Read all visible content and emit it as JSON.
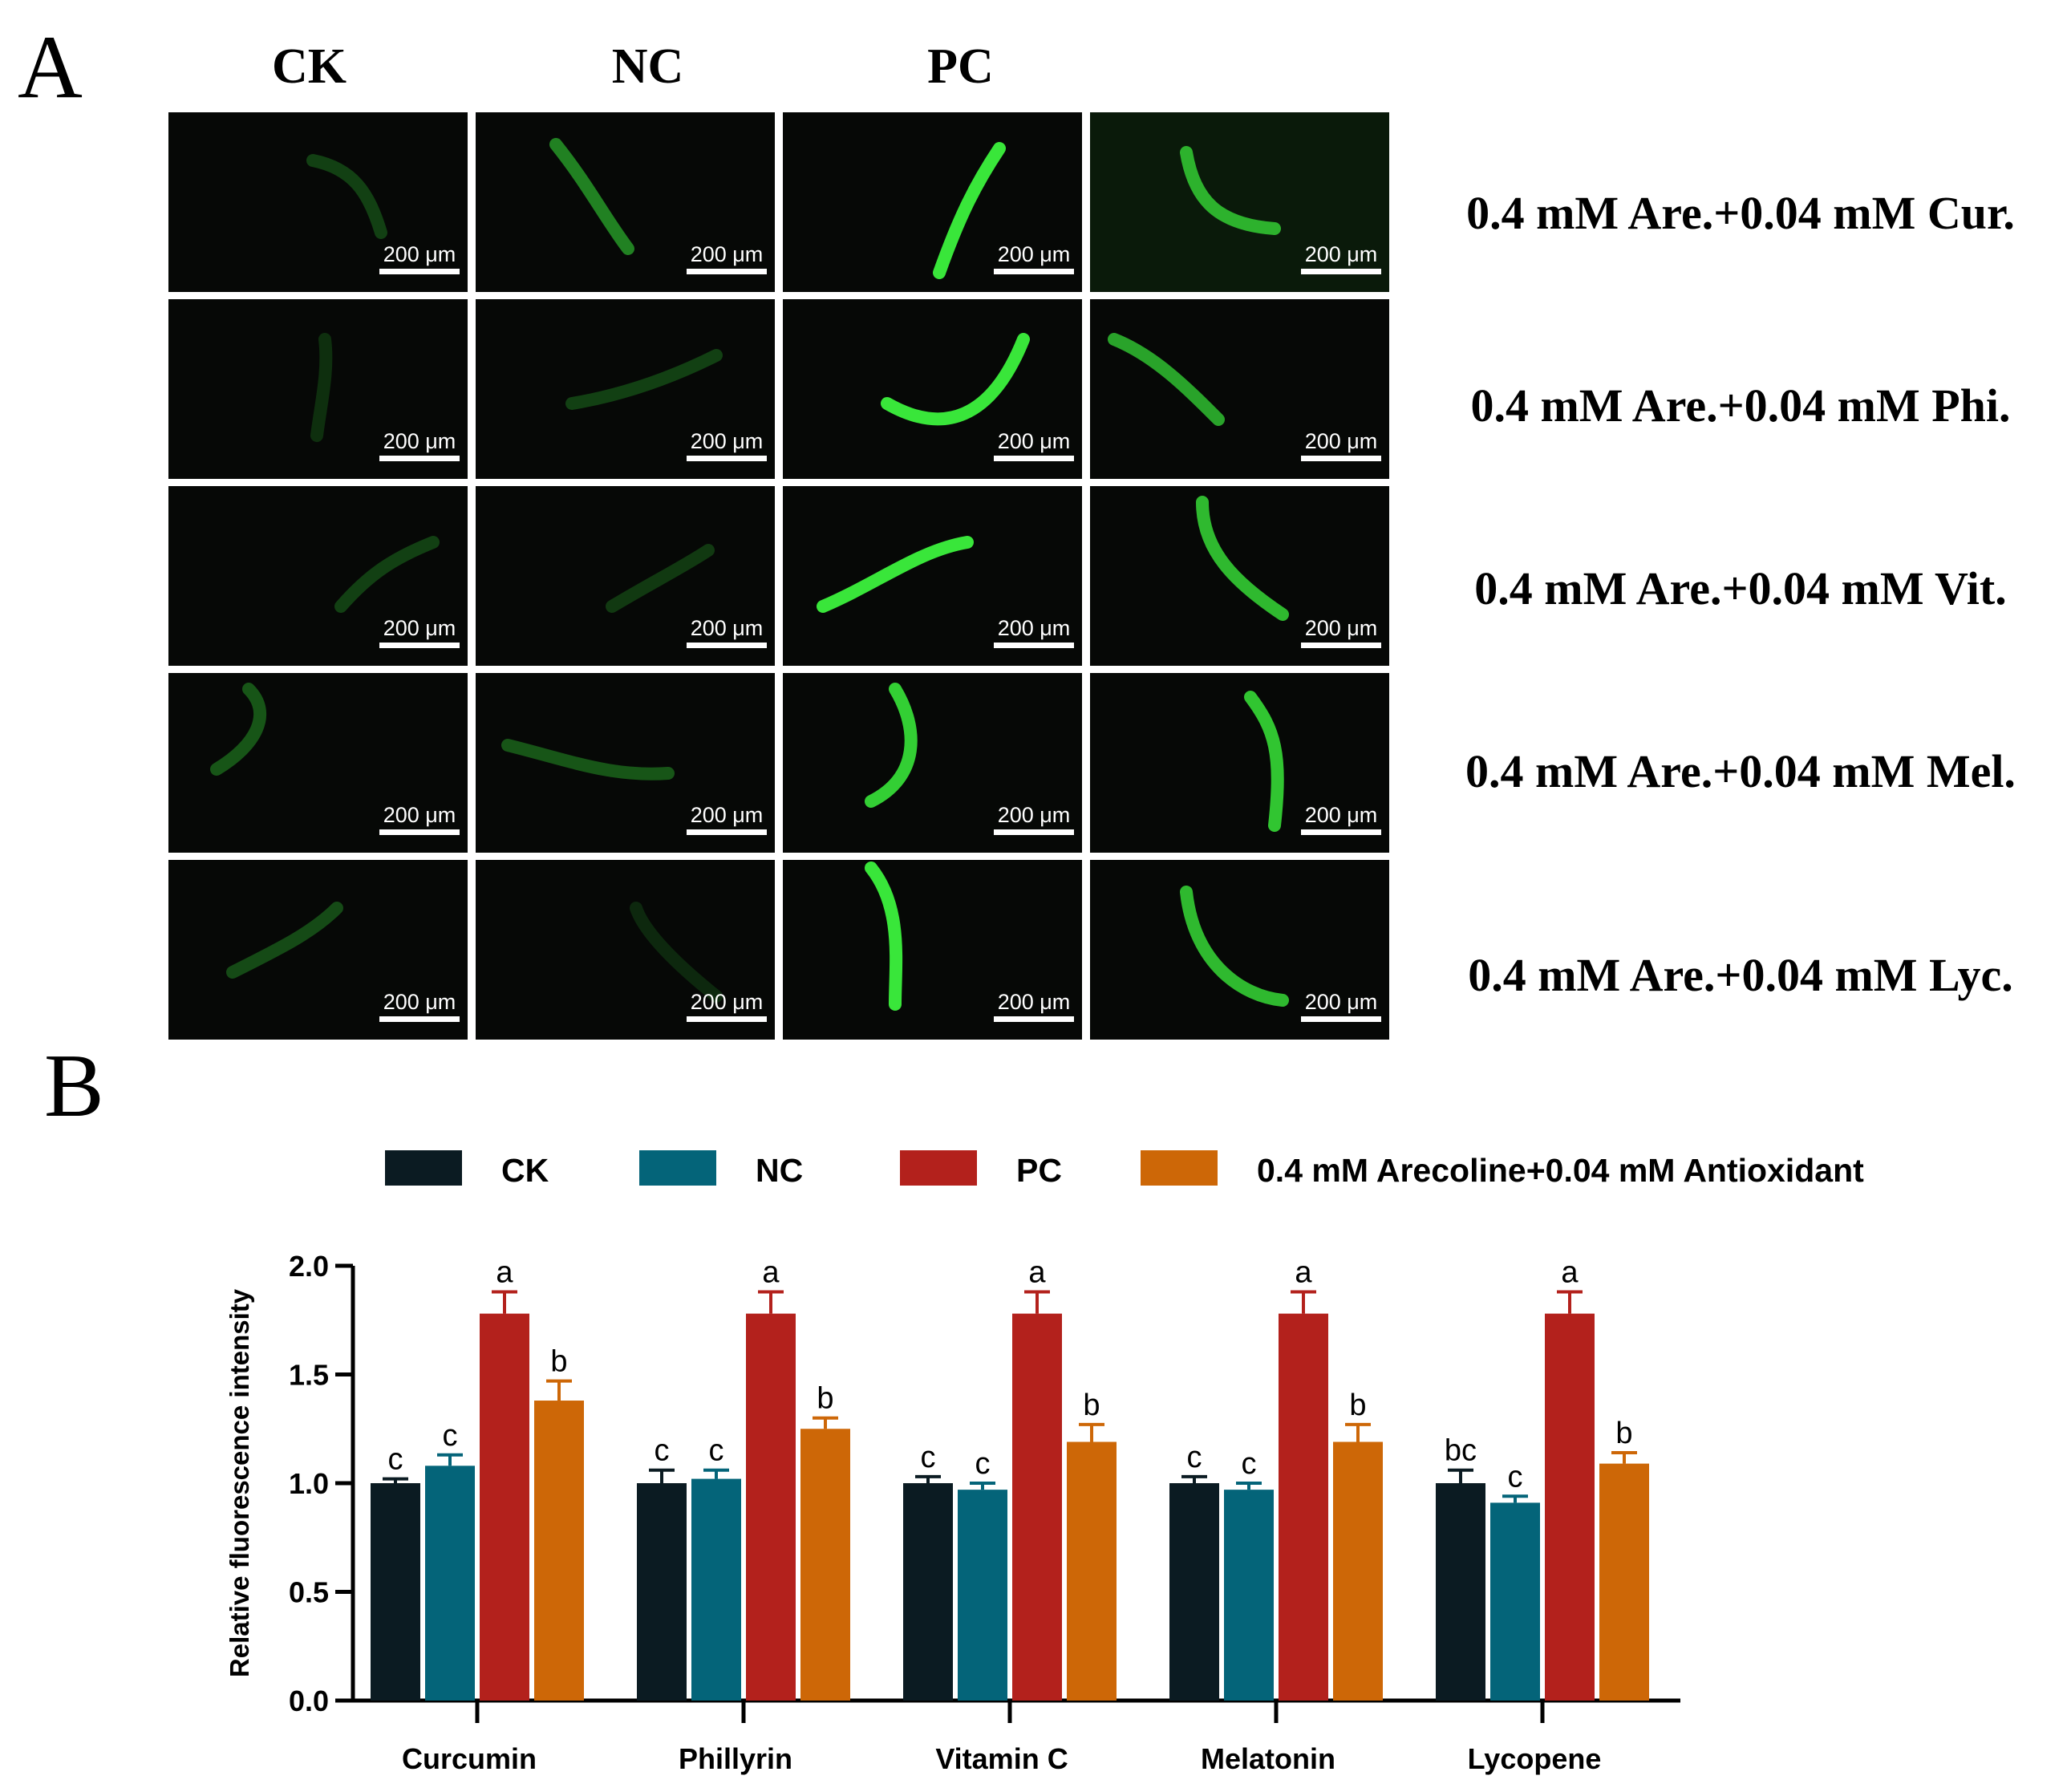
{
  "figure": {
    "panel_a_letter": "A",
    "panel_b_letter": "B",
    "column_headers": [
      "CK",
      "NC",
      "PC"
    ],
    "row_labels": [
      "0.4 mM Are.+0.04 mM Cur.",
      "0.4 mM Are.+0.04 mM Phi.",
      "0.4 mM Are.+0.04 mM Vit.",
      "0.4 mM Are.+0.04 mM Mel.",
      "0.4 mM Are.+0.04 mM Lyc."
    ],
    "scale_bar_label": "200 μm",
    "worm_color": "#39e63a"
  },
  "chart_data": {
    "type": "bar",
    "title": "",
    "xlabel": "",
    "ylabel": "Relative fluorescence intensity",
    "ylim": [
      0,
      2.0
    ],
    "yticks": [
      "0.0",
      "0.5",
      "1.0",
      "1.5",
      "2.0"
    ],
    "categories": [
      "Curcumin",
      "Phillyrin",
      "Vitamin C",
      "Melatonin",
      "Lycopene"
    ],
    "series": [
      {
        "name": "CK",
        "color": "#0b1b22",
        "values": [
          1.0,
          1.0,
          1.0,
          1.0,
          1.0
        ],
        "errors": [
          0.02,
          0.06,
          0.03,
          0.03,
          0.06
        ],
        "letters": [
          "c",
          "c",
          "c",
          "c",
          "bc"
        ]
      },
      {
        "name": "NC",
        "color": "#046479",
        "values": [
          1.08,
          1.02,
          0.97,
          0.97,
          0.91
        ],
        "errors": [
          0.05,
          0.04,
          0.03,
          0.03,
          0.03
        ],
        "letters": [
          "c",
          "c",
          "c",
          "c",
          "c"
        ]
      },
      {
        "name": "PC",
        "color": "#b3211c",
        "values": [
          1.78,
          1.78,
          1.78,
          1.78,
          1.78
        ],
        "errors": [
          0.1,
          0.1,
          0.1,
          0.1,
          0.1
        ],
        "letters": [
          "a",
          "a",
          "a",
          "a",
          "a"
        ]
      },
      {
        "name": "0.4 mM Arecoline+0.04 mM Antioxidant",
        "color": "#cd6707",
        "values": [
          1.38,
          1.25,
          1.19,
          1.19,
          1.09
        ],
        "errors": [
          0.09,
          0.05,
          0.08,
          0.08,
          0.05
        ],
        "letters": [
          "b",
          "b",
          "b",
          "b",
          "b"
        ]
      }
    ],
    "legend_position": "top",
    "grid": false
  }
}
